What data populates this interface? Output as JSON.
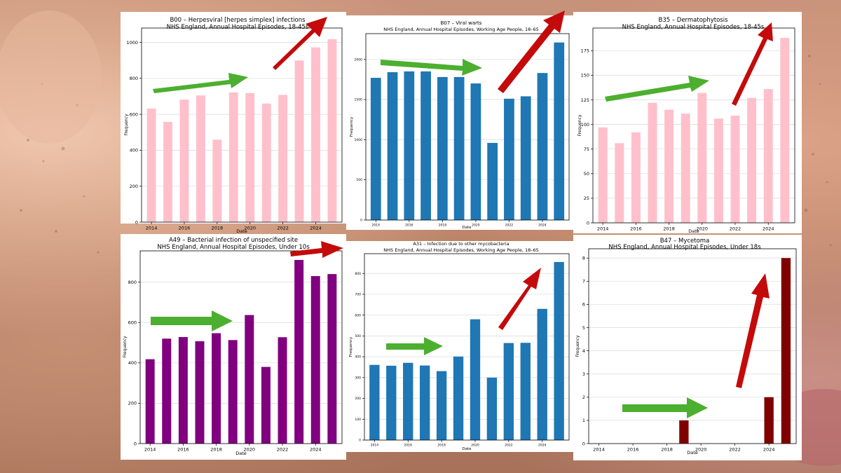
{
  "colors": {
    "pink": "#ffc0cb",
    "blue": "#1f77b4",
    "purple": "#800080",
    "maroon": "#800000",
    "green_arrow": "#4caf2f",
    "red_arrow": "#c40a0a"
  },
  "chart_data": [
    {
      "type": "bar",
      "title": "B00 – Herpesviral [herpes simplex] infections",
      "subtitle": "NHS England, Annual Hospital Episodes, 18-45s",
      "xlabel": "Date",
      "ylabel": "Frequency",
      "x": [
        2014,
        2015,
        2016,
        2017,
        2018,
        2019,
        2020,
        2021,
        2022,
        2023,
        2024,
        2025
      ],
      "values": [
        632,
        558,
        682,
        705,
        459,
        722,
        718,
        660,
        708,
        900,
        972,
        1018
      ],
      "ylim": [
        0,
        1080
      ],
      "yticks": [
        0,
        200,
        400,
        600,
        800,
        1000
      ],
      "xticks": [
        2014,
        2016,
        2018,
        2020,
        2022,
        2024
      ],
      "color": "#ffc0cb",
      "grid": "horizontal"
    },
    {
      "type": "bar",
      "title": "B07 – Viral warts",
      "subtitle": "NHS England, Annual Hospital Episodes, Working Age People, 18–65",
      "xlabel": "Date",
      "ylabel": "Frequency",
      "x": [
        2014,
        2015,
        2016,
        2017,
        2018,
        2019,
        2020,
        2021,
        2022,
        2023,
        2024,
        2025
      ],
      "values": [
        1770,
        1840,
        1850,
        1850,
        1780,
        1780,
        1700,
        960,
        1510,
        1540,
        1830,
        2210
      ],
      "ylim": [
        0,
        2320
      ],
      "yticks": [
        0,
        500,
        1000,
        1500,
        2000
      ],
      "xticks": [
        2014,
        2016,
        2018,
        2020,
        2022,
        2024
      ],
      "color": "#1f77b4",
      "grid": "horizontal"
    },
    {
      "type": "bar",
      "title": "B35 – Dermatophytosis",
      "subtitle": "NHS England, Annual Hospital Episodes, 18-45s",
      "xlabel": "Date",
      "ylabel": "Frequency",
      "x": [
        2014,
        2015,
        2016,
        2017,
        2018,
        2019,
        2020,
        2021,
        2022,
        2023,
        2024,
        2025
      ],
      "values": [
        97,
        81,
        92,
        122,
        115,
        111,
        132,
        106,
        109,
        127,
        136,
        188
      ],
      "ylim": [
        0,
        198
      ],
      "yticks": [
        0,
        25,
        50,
        75,
        100,
        125,
        150,
        175
      ],
      "xticks": [
        2014,
        2016,
        2018,
        2020,
        2022,
        2024
      ],
      "color": "#ffc0cb",
      "grid": "horizontal"
    },
    {
      "type": "bar",
      "title": "A49 – Bacterial infection of unspecified site",
      "subtitle": "NHS England, Annual Hospital Episodes, Under 10s",
      "xlabel": "Date",
      "ylabel": "Frequency",
      "x": [
        2014,
        2015,
        2016,
        2017,
        2018,
        2019,
        2020,
        2021,
        2022,
        2023,
        2024,
        2025
      ],
      "values": [
        418,
        520,
        528,
        507,
        547,
        513,
        637,
        380,
        527,
        910,
        830,
        840
      ],
      "ylim": [
        0,
        955
      ],
      "yticks": [
        0,
        200,
        400,
        600,
        800
      ],
      "xticks": [
        2014,
        2016,
        2018,
        2020,
        2022,
        2024
      ],
      "color": "#800080",
      "grid": "horizontal"
    },
    {
      "type": "bar",
      "title": "A31 – Infection due to other mycobacteria",
      "subtitle": "NHS England, Annual Hospital Episodes, Working Age People, 18–65",
      "xlabel": "Date",
      "ylabel": "Frequency",
      "x": [
        2014,
        2015,
        2016,
        2017,
        2018,
        2019,
        2020,
        2021,
        2022,
        2023,
        2024,
        2025
      ],
      "values": [
        361,
        357,
        371,
        358,
        331,
        401,
        580,
        300,
        466,
        467,
        630,
        855
      ],
      "ylim": [
        0,
        895
      ],
      "yticks": [
        0,
        100,
        200,
        300,
        400,
        500,
        600,
        700,
        800
      ],
      "xticks": [
        2014,
        2016,
        2018,
        2020,
        2022,
        2024
      ],
      "color": "#1f77b4",
      "grid": "horizontal"
    },
    {
      "type": "bar",
      "title": "B47 – Mycetoma",
      "subtitle": "NHS England, Annual Hospital Episodes, Under 18s",
      "xlabel": "Date",
      "ylabel": "Frequency",
      "x": [
        2014,
        2015,
        2016,
        2017,
        2018,
        2019,
        2020,
        2021,
        2022,
        2023,
        2024,
        2025
      ],
      "values": [
        0,
        0,
        0,
        0,
        0,
        1,
        0,
        0,
        0,
        0,
        2,
        8
      ],
      "ylim": [
        0,
        8.4
      ],
      "yticks": [
        0,
        1,
        2,
        3,
        4,
        5,
        6,
        7,
        8
      ],
      "xticks": [
        2014,
        2016,
        2018,
        2020,
        2022,
        2024
      ],
      "color": "#800000",
      "grid": "horizontal"
    }
  ]
}
